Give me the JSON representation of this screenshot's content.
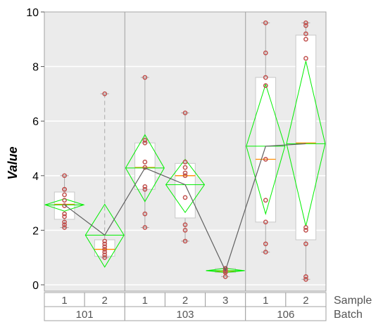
{
  "chart_data": {
    "type": "variability",
    "ylabel": "Value",
    "ylim": [
      0,
      10
    ],
    "yticks": [
      0,
      2,
      4,
      6,
      8,
      10
    ],
    "group_labels": {
      "inner": "Sample",
      "outer": "Batch"
    },
    "batches": [
      {
        "name": "101",
        "samples": [
          {
            "name": "1",
            "mean": 2.93,
            "ci": [
              2.7,
              3.15
            ],
            "median": 2.95,
            "q1": 2.4,
            "q3": 3.4,
            "whisker_low": 2.1,
            "whisker_high": 4.0,
            "points": [
              4.0,
              3.5,
              3.5,
              3.3,
              3.1,
              2.9,
              2.6,
              2.5,
              2.3,
              2.2,
              2.1
            ]
          },
          {
            "name": "2",
            "mean": 1.82,
            "ci": [
              0.65,
              2.95
            ],
            "median": 1.3,
            "q1": 1.05,
            "q3": 1.65,
            "whisker_low": 1.0,
            "whisker_high": 7.0,
            "points": [
              7.0,
              1.6,
              1.5,
              1.4,
              1.3,
              1.3,
              1.2,
              1.1,
              1.0
            ]
          }
        ]
      },
      {
        "name": "103",
        "samples": [
          {
            "name": "1",
            "mean": 4.28,
            "ci": [
              3.05,
              5.5
            ],
            "median": 4.3,
            "q1": 3.5,
            "q3": 5.2,
            "whisker_low": 2.1,
            "whisker_high": 7.6,
            "points": [
              7.6,
              5.3,
              5.2,
              4.5,
              4.3,
              3.6,
              3.5,
              2.6,
              2.1
            ]
          },
          {
            "name": "2",
            "mean": 3.67,
            "ci": [
              2.65,
              4.6
            ],
            "median": 4.0,
            "q1": 2.45,
            "q3": 4.45,
            "whisker_low": 1.6,
            "whisker_high": 6.3,
            "points": [
              6.3,
              4.5,
              4.3,
              4.1,
              4.0,
              3.2,
              2.2,
              2.0,
              1.6
            ]
          },
          {
            "name": "3",
            "mean": 0.52,
            "ci": [
              0.45,
              0.6
            ],
            "median": 0.5,
            "q1": 0.45,
            "q3": 0.6,
            "whisker_low": 0.3,
            "whisker_high": 0.6,
            "points": [
              0.6,
              0.6,
              0.55,
              0.5,
              0.5,
              0.45,
              0.3
            ]
          }
        ]
      },
      {
        "name": "106",
        "samples": [
          {
            "name": "1",
            "mean": 5.08,
            "ci": [
              2.6,
              7.35
            ],
            "median": 4.6,
            "q1": 2.3,
            "q3": 7.6,
            "whisker_low": 1.2,
            "whisker_high": 9.6,
            "points": [
              9.6,
              8.5,
              7.6,
              7.3,
              4.6,
              3.1,
              2.3,
              1.5,
              1.2
            ]
          },
          {
            "name": "2",
            "mean": 5.17,
            "ci": [
              2.15,
              8.2
            ],
            "median": 5.2,
            "q1": 1.65,
            "q3": 9.15,
            "whisker_low": 0.2,
            "whisker_high": 9.6,
            "points": [
              9.6,
              9.5,
              9.2,
              9.0,
              8.3,
              2.1,
              2.0,
              1.5,
              0.3,
              0.2
            ]
          }
        ]
      }
    ],
    "colors": {
      "panel_bg": "#ebebeb",
      "grid": "#ffffff",
      "box_fill": "#ffffff",
      "box_stroke": "#c8c8c8",
      "whisker": "#aaaaaa",
      "median": "#ff8c00",
      "diamond": "#00ee00",
      "point": "#c0504d",
      "mean_line": "#606060",
      "divider": "#a0a0a0"
    }
  }
}
